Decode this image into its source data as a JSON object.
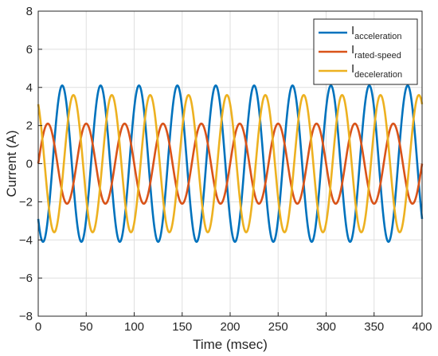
{
  "chart_data": {
    "type": "line",
    "xlabel": "Time (msec)",
    "ylabel": "Current (A)",
    "xlim": [
      0,
      400
    ],
    "ylim": [
      -8,
      8
    ],
    "x_ticks": [
      0,
      50,
      100,
      150,
      200,
      250,
      300,
      350,
      400
    ],
    "y_ticks": [
      -8,
      -6,
      -4,
      -2,
      0,
      2,
      4,
      6,
      8
    ],
    "grid": true,
    "legend_position": "top-right",
    "series": [
      {
        "name": "I",
        "name_subscript": "acceleration",
        "color": "#0072BD",
        "amplitude": 4.1,
        "period_ms": 40,
        "phase_deg": 225
      },
      {
        "name": "I",
        "name_subscript": "rated-speed",
        "color": "#D95319",
        "amplitude": 2.1,
        "period_ms": 40,
        "phase_deg": 0
      },
      {
        "name": "I",
        "name_subscript": "deceleration",
        "color": "#EDB120",
        "amplitude": 3.6,
        "period_ms": 40,
        "phase_deg": 120
      }
    ]
  }
}
